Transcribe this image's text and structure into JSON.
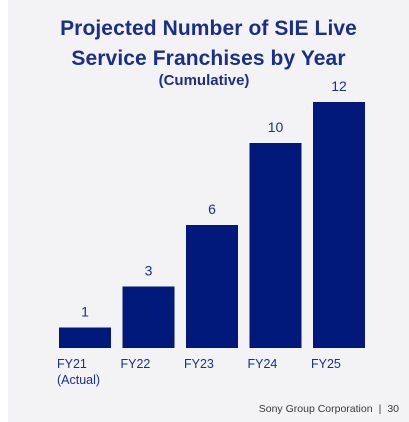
{
  "colors": {
    "bar": "#00197a",
    "title": "#1b2f87",
    "panel": "#f3f3f5",
    "label": "#1b2f87"
  },
  "title_lines": [
    "Projected Number of SIE Live",
    "Service Franchises by Year"
  ],
  "subtitle": "(Cumulative)",
  "footer": {
    "company": "Sony Group Corporation",
    "page": "30"
  },
  "chart_data": {
    "type": "bar",
    "title": "Projected Number of SIE Live Service Franchises by Year",
    "subtitle": "(Cumulative)",
    "categories": [
      [
        "FY21",
        "(Actual)"
      ],
      [
        "FY22"
      ],
      [
        "FY23"
      ],
      [
        "FY24"
      ],
      [
        "FY25"
      ]
    ],
    "values": [
      1,
      3,
      6,
      10,
      12
    ],
    "data_labels": [
      "1",
      "3",
      "6",
      "10",
      "12"
    ],
    "xlabel": "",
    "ylabel": "",
    "ylim": [
      0,
      12
    ],
    "grid": false,
    "legend": "none"
  }
}
